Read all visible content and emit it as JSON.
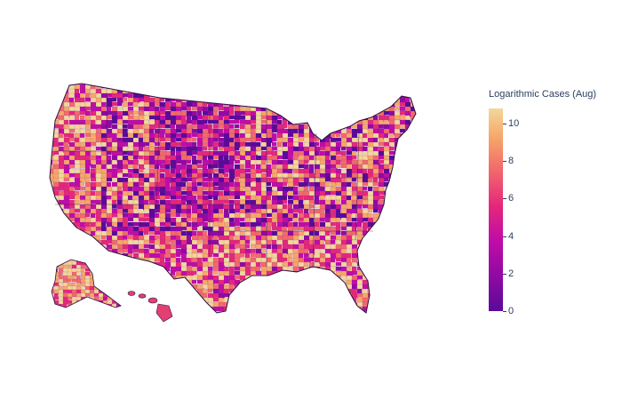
{
  "map": {
    "type": "choropleth",
    "region": "USA counties",
    "colorscale": [
      "#0d0887",
      "#6a00a8",
      "#b12a90",
      "#e16462",
      "#fca636",
      "#f0f921"
    ],
    "colorscale_displayed": [
      "#5a0a9a",
      "#8f0aa3",
      "#c00ca8",
      "#e5287a",
      "#f26a6c",
      "#f6a86a",
      "#f3d79b"
    ],
    "hawaii_color": "#e33f73"
  },
  "colorbar": {
    "title": "Logarithmic Cases (Aug)",
    "ticks": [
      "0",
      "2",
      "4",
      "6",
      "8",
      "10"
    ],
    "tick_values": [
      0,
      2,
      4,
      6,
      8,
      10
    ],
    "range": [
      0,
      10.8
    ]
  }
}
